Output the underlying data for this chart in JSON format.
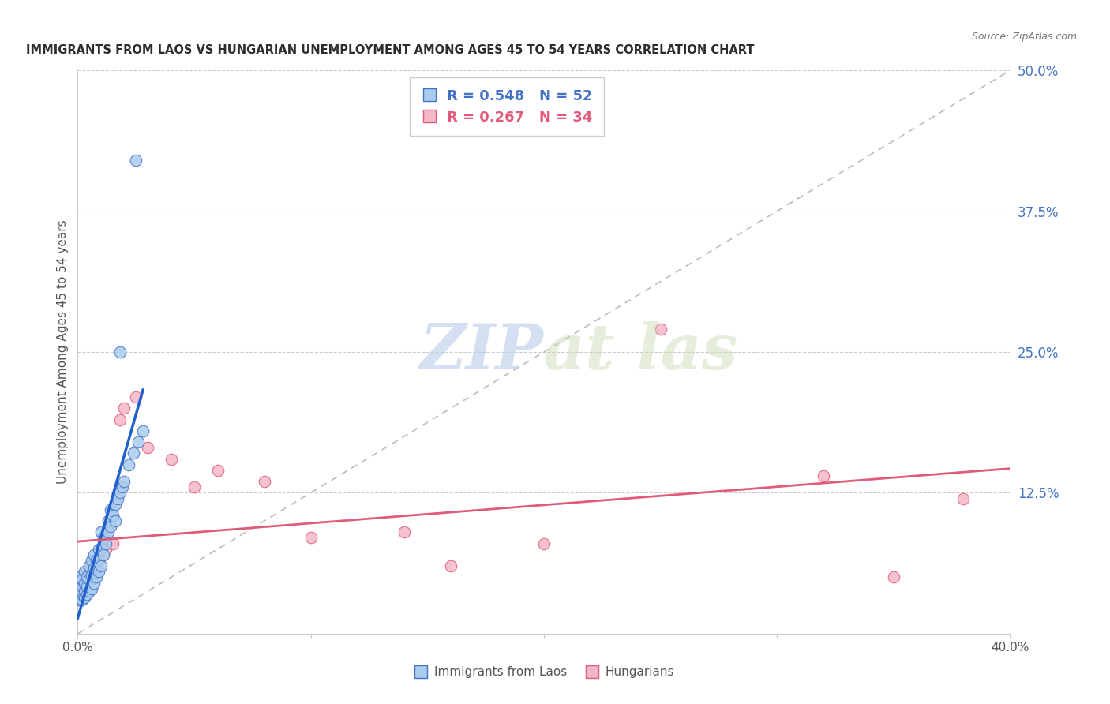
{
  "title": "IMMIGRANTS FROM LAOS VS HUNGARIAN UNEMPLOYMENT AMONG AGES 45 TO 54 YEARS CORRELATION CHART",
  "source": "Source: ZipAtlas.com",
  "ylabel": "Unemployment Among Ages 45 to 54 years",
  "xlim": [
    0.0,
    0.4
  ],
  "ylim": [
    0.0,
    0.5
  ],
  "legend_r1": "R = 0.548",
  "legend_n1": "N = 52",
  "legend_r2": "R = 0.267",
  "legend_n2": "N = 34",
  "title_color": "#2d2d2d",
  "source_color": "#777777",
  "axis_label_color": "#555555",
  "tick_label_color_right": "#4472c4",
  "tick_label_color_bottom": "#555555",
  "legend_text_color_blue": "#4472c4",
  "legend_text_color_pink": "#e05a7a",
  "watermark_color": "#c8d8f0",
  "scatter_laos_color": "#aaccf0",
  "scatter_laos_edge": "#4472c4",
  "scatter_hung_color": "#f5b8c8",
  "scatter_hung_edge": "#e05a7a",
  "line_laos_color": "#2060cc",
  "line_hung_color": "#e05a7a",
  "diag_line_color": "#bbbbbb",
  "laos_x": [
    0.0,
    0.001,
    0.001,
    0.001,
    0.002,
    0.002,
    0.002,
    0.002,
    0.002,
    0.003,
    0.003,
    0.003,
    0.003,
    0.004,
    0.004,
    0.004,
    0.005,
    0.005,
    0.005,
    0.006,
    0.006,
    0.006,
    0.007,
    0.007,
    0.007,
    0.008,
    0.008,
    0.009,
    0.009,
    0.01,
    0.01,
    0.01,
    0.011,
    0.011,
    0.012,
    0.013,
    0.013,
    0.014,
    0.014,
    0.015,
    0.016,
    0.016,
    0.017,
    0.018,
    0.019,
    0.02,
    0.022,
    0.024,
    0.026,
    0.028,
    0.018,
    0.025
  ],
  "laos_y": [
    0.03,
    0.035,
    0.04,
    0.05,
    0.03,
    0.035,
    0.038,
    0.042,
    0.048,
    0.032,
    0.038,
    0.045,
    0.055,
    0.035,
    0.042,
    0.05,
    0.038,
    0.048,
    0.06,
    0.04,
    0.052,
    0.065,
    0.045,
    0.058,
    0.07,
    0.05,
    0.065,
    0.055,
    0.075,
    0.06,
    0.075,
    0.09,
    0.07,
    0.085,
    0.08,
    0.09,
    0.1,
    0.095,
    0.11,
    0.105,
    0.1,
    0.115,
    0.12,
    0.125,
    0.13,
    0.135,
    0.15,
    0.16,
    0.17,
    0.18,
    0.25,
    0.42
  ],
  "hung_x": [
    0.0,
    0.001,
    0.001,
    0.002,
    0.002,
    0.003,
    0.003,
    0.004,
    0.004,
    0.005,
    0.005,
    0.006,
    0.007,
    0.008,
    0.009,
    0.01,
    0.012,
    0.015,
    0.018,
    0.02,
    0.025,
    0.03,
    0.04,
    0.05,
    0.06,
    0.08,
    0.1,
    0.14,
    0.16,
    0.2,
    0.25,
    0.32,
    0.35,
    0.38
  ],
  "hung_y": [
    0.03,
    0.035,
    0.04,
    0.038,
    0.045,
    0.04,
    0.048,
    0.042,
    0.055,
    0.045,
    0.058,
    0.05,
    0.055,
    0.06,
    0.065,
    0.07,
    0.075,
    0.08,
    0.19,
    0.2,
    0.21,
    0.165,
    0.155,
    0.13,
    0.145,
    0.135,
    0.085,
    0.09,
    0.06,
    0.08,
    0.27,
    0.14,
    0.05,
    0.12
  ]
}
